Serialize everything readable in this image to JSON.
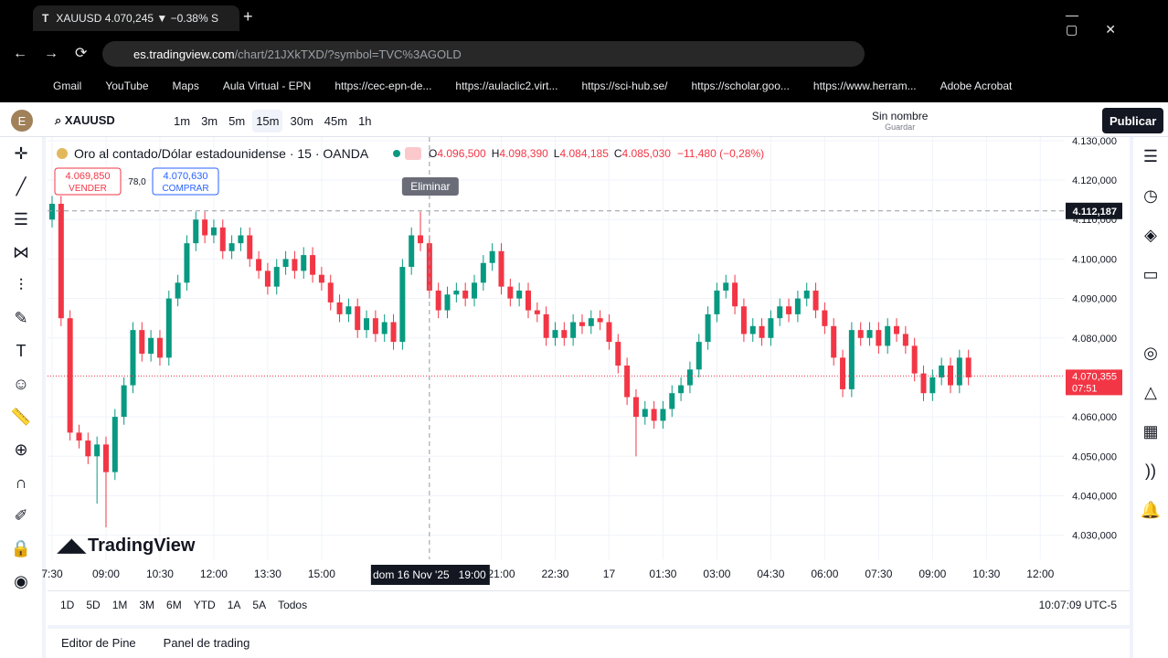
{
  "browser": {
    "tab_title": "XAUUSD 4.070,245 ▼ −0.38% S",
    "url_host": "es.tradingview.com",
    "url_path": "/chart/21JXkTXD/?symbol=TVC%3AGOLD",
    "bookmarks": [
      "Gmail",
      "YouTube",
      "Maps",
      "Aula Virtual - EPN",
      "https://cec-epn-de...",
      "https://aulaclic2.virt...",
      "https://sci-hub.se/",
      "https://scholar.goo...",
      "https://www.herram...",
      "Adobe Acrobat"
    ]
  },
  "toolbar": {
    "avatar": "E",
    "symbol": "XAUUSD",
    "intervals": [
      "1m",
      "3m",
      "5m",
      "15m",
      "30m",
      "45m",
      "1h"
    ],
    "active_interval": "15m",
    "layout_name": "Sin nombre",
    "save": "Guardar",
    "publish": "Publicar"
  },
  "chart_data": {
    "type": "candlestick",
    "title": "Oro al contado/Dólar estadounidense · 15 · OANDA",
    "ohlc": [
      "O",
      "4.096,500",
      "H",
      "4.098,390",
      "L",
      "4.084,185",
      "C",
      "4.085,030"
    ],
    "change": "−11,480 (−0,28%)",
    "sell": {
      "price": "4.069,850",
      "label": "VENDER"
    },
    "spread": "78,0",
    "buy": {
      "price": "4.070,630",
      "label": "COMPRAR"
    },
    "tooltip": "Eliminar",
    "watermark": "TradingView",
    "up_color": "#089981",
    "down_color": "#f23645",
    "ylim": [
      4023.9,
      4130.9
    ],
    "yticks": [
      {
        "value": 4030,
        "label": "4.030,000"
      },
      {
        "value": 4040,
        "label": "4.040,000"
      },
      {
        "value": 4050,
        "label": "4.050,000"
      },
      {
        "value": 4060,
        "label": "4.060,000"
      },
      {
        "value": 4070,
        "label": "4.070,000"
      },
      {
        "value": 4080,
        "label": "4.080,000"
      },
      {
        "value": 4090,
        "label": "4.090,000"
      },
      {
        "value": 4100,
        "label": "4.100,000"
      },
      {
        "value": 4110,
        "label": "4.110,000"
      },
      {
        "value": 4120,
        "label": "4.120,000"
      },
      {
        "value": 4130,
        "label": "4.130,000"
      }
    ],
    "xticks": [
      {
        "value": 0,
        "label": "7:30"
      },
      {
        "value": 6,
        "label": "09:00"
      },
      {
        "value": 12,
        "label": "10:30"
      },
      {
        "value": 18,
        "label": "12:00"
      },
      {
        "value": 24,
        "label": "13:30"
      },
      {
        "value": 30,
        "label": "15:00"
      },
      {
        "value": 50,
        "label": "21:00"
      },
      {
        "value": 56,
        "label": "22:30"
      },
      {
        "value": 62,
        "label": "17"
      },
      {
        "value": 68,
        "label": "01:30"
      },
      {
        "value": 74,
        "label": "03:00"
      },
      {
        "value": 80,
        "label": "04:30"
      },
      {
        "value": 86,
        "label": "06:00"
      },
      {
        "value": 92,
        "label": "07:30"
      },
      {
        "value": 98,
        "label": "09:00"
      },
      {
        "value": 104,
        "label": "10:30"
      },
      {
        "value": 110,
        "label": "12:00"
      }
    ],
    "crosshair": {
      "index": 42,
      "time_label": "dom 16 Nov '25   19:00",
      "price": {
        "value": 4112.187,
        "label": "4.112,187"
      }
    },
    "last_price": {
      "value": 4070.355,
      "label": "4.070,355",
      "countdown": "07:51"
    },
    "open": [
      4110,
      4114,
      4085,
      4056,
      4054,
      4050,
      4053,
      4046,
      4060,
      4068,
      4082,
      4076,
      4080,
      4075,
      4090,
      4094,
      4104,
      4110,
      4106,
      4108,
      4102,
      4104,
      4106,
      4100,
      4097,
      4093,
      4098,
      4100,
      4097,
      4101,
      4096,
      4094,
      4089,
      4086,
      4088,
      4082,
      4085,
      4081,
      4084,
      4079,
      4098,
      4106,
      4104,
      4092,
      4087,
      4091,
      4092,
      4090,
      4094,
      4099,
      4102,
      4093,
      4090,
      4092,
      4087,
      4086,
      4080,
      4082,
      4080,
      4084,
      4083,
      4085,
      4084,
      4079,
      4073,
      4065,
      4060,
      4062,
      4059,
      4062,
      4066,
      4068,
      4072,
      4079,
      4086,
      4092,
      4094,
      4088,
      4081,
      4083,
      4080,
      4085,
      4088,
      4086,
      4090,
      4092,
      4087,
      4083,
      4075,
      4067,
      4082,
      4080,
      4082,
      4078,
      4083,
      4081,
      4078,
      4071,
      4066,
      4070,
      4073,
      4068,
      4075
    ],
    "high": [
      4116,
      4116,
      4087,
      4058,
      4056,
      4055,
      4055,
      4062,
      4070,
      4084,
      4084,
      4082,
      4082,
      4092,
      4096,
      4106,
      4112,
      4112,
      4110,
      4110,
      4106,
      4108,
      4108,
      4102,
      4099,
      4100,
      4102,
      4102,
      4103,
      4103,
      4098,
      4096,
      4091,
      4090,
      4090,
      4087,
      4087,
      4086,
      4086,
      4100,
      4108,
      4112,
      4106,
      4094,
      4093,
      4094,
      4094,
      4096,
      4101,
      4104,
      4104,
      4095,
      4094,
      4094,
      4089,
      4088,
      4084,
      4084,
      4086,
      4086,
      4087,
      4087,
      4086,
      4081,
      4075,
      4067,
      4064,
      4064,
      4064,
      4068,
      4070,
      4074,
      4081,
      4088,
      4094,
      4096,
      4096,
      4090,
      4085,
      4085,
      4087,
      4090,
      4090,
      4092,
      4094,
      4094,
      4089,
      4085,
      4077,
      4084,
      4084,
      4084,
      4084,
      4085,
      4085,
      4083,
      4080,
      4073,
      4072,
      4075,
      4075,
      4077,
      4077
    ],
    "low": [
      4108,
      4083,
      4054,
      4052,
      4048,
      4038,
      4032,
      4044,
      4058,
      4066,
      4074,
      4074,
      4073,
      4073,
      4088,
      4092,
      4102,
      4104,
      4104,
      4100,
      4100,
      4102,
      4098,
      4095,
      4091,
      4091,
      4096,
      4095,
      4095,
      4094,
      4092,
      4087,
      4084,
      4084,
      4080,
      4080,
      4079,
      4079,
      4077,
      4077,
      4096,
      4102,
      4090,
      4085,
      4085,
      4089,
      4088,
      4088,
      4092,
      4097,
      4091,
      4088,
      4088,
      4085,
      4084,
      4078,
      4078,
      4078,
      4078,
      4081,
      4081,
      4082,
      4077,
      4071,
      4063,
      4050,
      4058,
      4057,
      4057,
      4060,
      4064,
      4066,
      4070,
      4077,
      4084,
      4090,
      4086,
      4079,
      4079,
      4078,
      4078,
      4083,
      4084,
      4084,
      4088,
      4085,
      4081,
      4073,
      4065,
      4065,
      4078,
      4078,
      4076,
      4076,
      4079,
      4076,
      4069,
      4064,
      4064,
      4068,
      4066,
      4066,
      4068
    ],
    "close": [
      4114,
      4085,
      4056,
      4054,
      4050,
      4053,
      4046,
      4060,
      4068,
      4082,
      4076,
      4080,
      4075,
      4090,
      4094,
      4104,
      4110,
      4106,
      4108,
      4102,
      4104,
      4106,
      4100,
      4097,
      4093,
      4098,
      4100,
      4097,
      4101,
      4096,
      4094,
      4089,
      4086,
      4088,
      4082,
      4085,
      4081,
      4084,
      4079,
      4098,
      4106,
      4104,
      4092,
      4087,
      4091,
      4092,
      4090,
      4094,
      4099,
      4102,
      4093,
      4090,
      4092,
      4087,
      4086,
      4080,
      4082,
      4080,
      4084,
      4083,
      4085,
      4084,
      4079,
      4073,
      4065,
      4060,
      4062,
      4059,
      4062,
      4066,
      4068,
      4072,
      4079,
      4086,
      4092,
      4094,
      4088,
      4081,
      4083,
      4080,
      4085,
      4088,
      4086,
      4090,
      4092,
      4087,
      4083,
      4075,
      4067,
      4082,
      4080,
      4082,
      4078,
      4083,
      4081,
      4078,
      4071,
      4066,
      4070,
      4073,
      4068,
      4075,
      4070
    ]
  },
  "bottom": {
    "ranges": [
      "1D",
      "5D",
      "1M",
      "3M",
      "6M",
      "YTD",
      "1A",
      "5A",
      "Todos"
    ],
    "clock": "10:07:09 UTC-5",
    "tabs": [
      "Editor de Pine",
      "Panel de trading"
    ]
  }
}
